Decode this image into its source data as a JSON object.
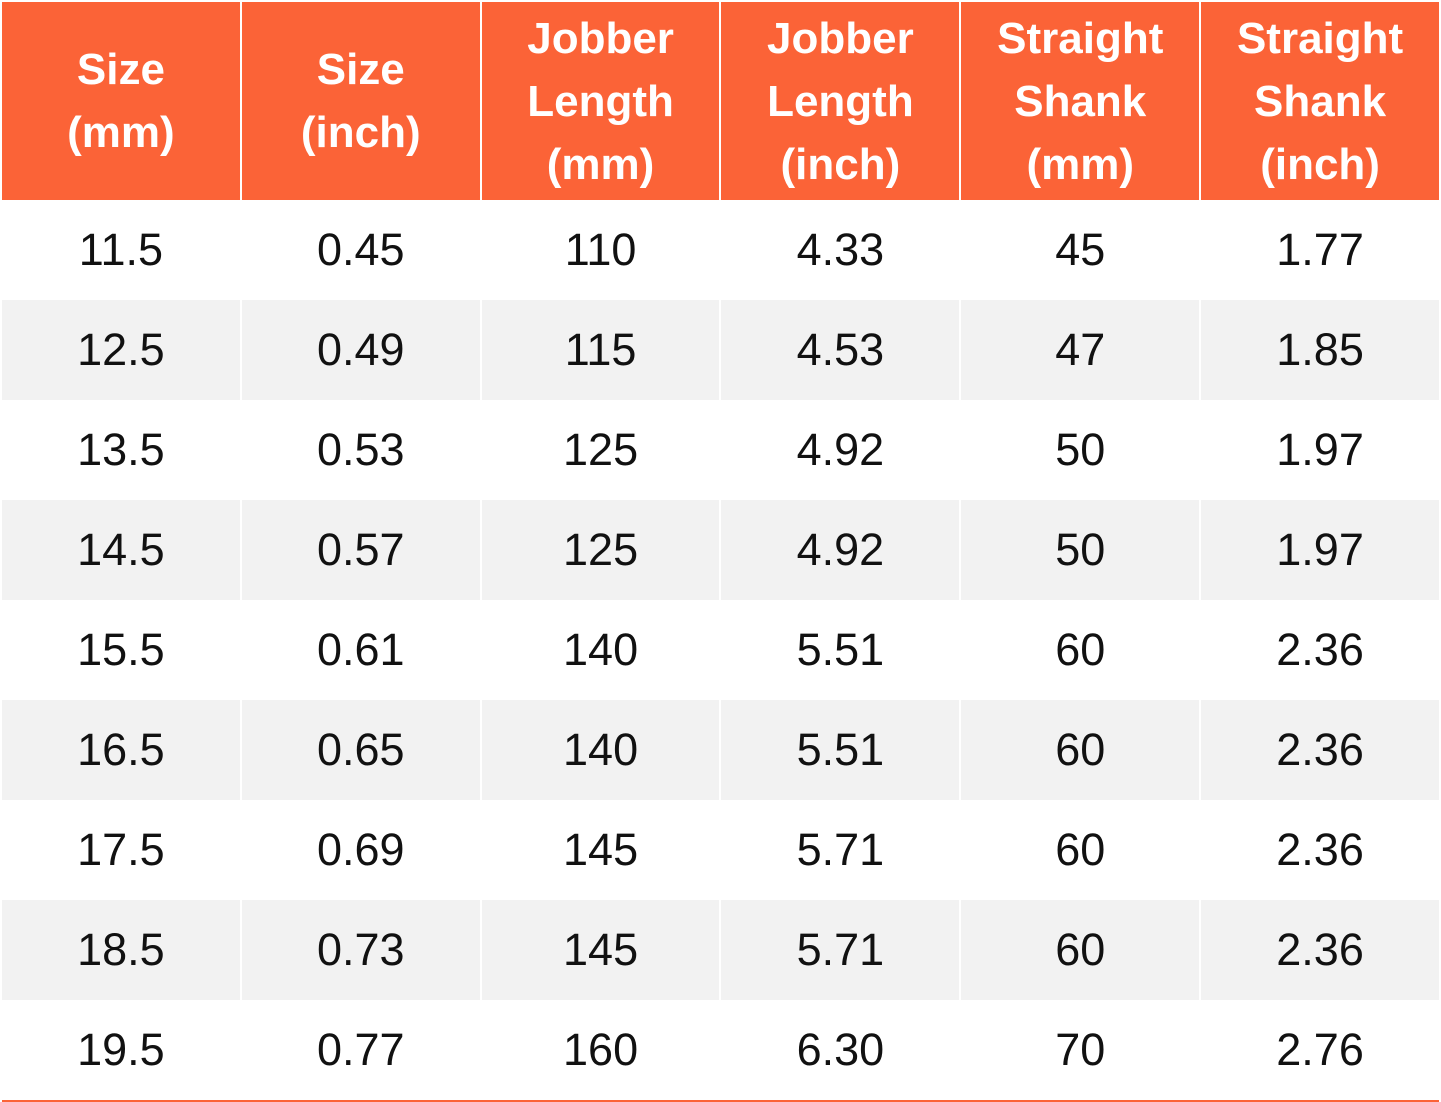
{
  "colors": {
    "header_bg": "#fb6337",
    "header_text": "#ffffff",
    "row_bg": "#ffffff",
    "row_alt_bg": "#f2f2f2",
    "cell_text": "#111111",
    "bottom_rule": "#fb6337"
  },
  "table": {
    "headers": [
      "Size\n(mm)",
      "Size\n(inch)",
      "Jobber\nLength\n(mm)",
      "Jobber\nLength\n(inch)",
      "Straight\nShank\n(mm)",
      "Straight\nShank\n(inch)"
    ],
    "rows": [
      [
        "11.5",
        "0.45",
        "110",
        "4.33",
        "45",
        "1.77"
      ],
      [
        "12.5",
        "0.49",
        "115",
        "4.53",
        "47",
        "1.85"
      ],
      [
        "13.5",
        "0.53",
        "125",
        "4.92",
        "50",
        "1.97"
      ],
      [
        "14.5",
        "0.57",
        "125",
        "4.92",
        "50",
        "1.97"
      ],
      [
        "15.5",
        "0.61",
        "140",
        "5.51",
        "60",
        "2.36"
      ],
      [
        "16.5",
        "0.65",
        "140",
        "5.51",
        "60",
        "2.36"
      ],
      [
        "17.5",
        "0.69",
        "145",
        "5.71",
        "60",
        "2.36"
      ],
      [
        "18.5",
        "0.73",
        "145",
        "5.71",
        "60",
        "2.36"
      ],
      [
        "19.5",
        "0.77",
        "160",
        "6.30",
        "70",
        "2.76"
      ]
    ]
  },
  "chart_data": {
    "type": "table",
    "title": "",
    "columns": [
      "Size (mm)",
      "Size (inch)",
      "Jobber Length (mm)",
      "Jobber Length (inch)",
      "Straight Shank (mm)",
      "Straight Shank (inch)"
    ],
    "rows": [
      [
        11.5,
        0.45,
        110,
        4.33,
        45,
        1.77
      ],
      [
        12.5,
        0.49,
        115,
        4.53,
        47,
        1.85
      ],
      [
        13.5,
        0.53,
        125,
        4.92,
        50,
        1.97
      ],
      [
        14.5,
        0.57,
        125,
        4.92,
        50,
        1.97
      ],
      [
        15.5,
        0.61,
        140,
        5.51,
        60,
        2.36
      ],
      [
        16.5,
        0.65,
        140,
        5.51,
        60,
        2.36
      ],
      [
        17.5,
        0.69,
        145,
        5.71,
        60,
        2.36
      ],
      [
        18.5,
        0.73,
        145,
        5.71,
        60,
        2.36
      ],
      [
        19.5,
        0.77,
        160,
        6.3,
        70,
        2.76
      ]
    ]
  }
}
